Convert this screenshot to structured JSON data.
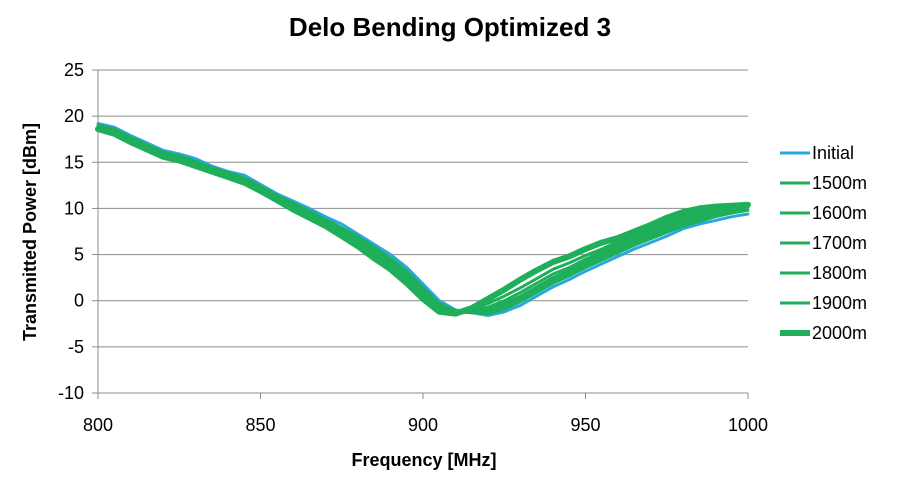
{
  "chart_data": {
    "type": "line",
    "title": "Delo Bending Optimized 3",
    "xlabel": "Frequency [MHz]",
    "ylabel": "Transmitted Power [dBm]",
    "xlim": [
      800,
      1000
    ],
    "ylim": [
      -10,
      25
    ],
    "xticks": [
      800,
      850,
      900,
      950,
      1000
    ],
    "yticks": [
      -10,
      -5,
      0,
      5,
      10,
      15,
      20,
      25
    ],
    "grid": "horizontal",
    "legend_position": "right",
    "x": [
      800,
      805,
      810,
      815,
      820,
      825,
      830,
      835,
      840,
      845,
      850,
      855,
      860,
      865,
      870,
      875,
      880,
      885,
      890,
      895,
      900,
      905,
      910,
      915,
      920,
      925,
      930,
      935,
      940,
      945,
      950,
      955,
      960,
      965,
      970,
      975,
      980,
      985,
      990,
      995,
      1000
    ],
    "series": [
      {
        "name": "Initial",
        "color": "#29a8e0",
        "width": 3,
        "values": [
          19.2,
          18.8,
          17.9,
          17.1,
          16.3,
          15.9,
          15.4,
          14.6,
          14.0,
          13.6,
          12.6,
          11.6,
          10.8,
          10.0,
          9.1,
          8.3,
          7.2,
          6.1,
          5.0,
          3.6,
          1.8,
          0.0,
          -1.0,
          -1.3,
          -1.6,
          -1.2,
          -0.5,
          0.5,
          1.5,
          2.3,
          3.2,
          4.0,
          4.8,
          5.6,
          6.3,
          7.0,
          7.8,
          8.3,
          8.7,
          9.1,
          9.4
        ]
      },
      {
        "name": "1500m",
        "color": "#1fae5a",
        "width": 3,
        "values": [
          19.0,
          18.6,
          17.7,
          16.9,
          16.1,
          15.7,
          15.1,
          14.4,
          13.9,
          13.3,
          12.4,
          11.4,
          10.6,
          9.7,
          8.8,
          7.9,
          6.9,
          5.8,
          4.6,
          3.2,
          1.4,
          -0.3,
          -1.1,
          -1.3,
          -1.4,
          -0.9,
          -0.1,
          0.9,
          1.9,
          2.7,
          3.6,
          4.4,
          5.2,
          6.0,
          6.7,
          7.4,
          8.1,
          8.6,
          9.1,
          9.5,
          9.8
        ]
      },
      {
        "name": "1600m",
        "color": "#1fae5a",
        "width": 3,
        "values": [
          18.9,
          18.5,
          17.6,
          16.8,
          16.0,
          15.6,
          15.0,
          14.3,
          13.8,
          13.2,
          12.3,
          11.3,
          10.4,
          9.5,
          8.7,
          7.7,
          6.8,
          5.6,
          4.4,
          3.0,
          1.2,
          -0.5,
          -1.2,
          -1.3,
          -1.2,
          -0.6,
          0.2,
          1.2,
          2.2,
          3.0,
          3.9,
          4.7,
          5.5,
          6.3,
          7.0,
          7.7,
          8.4,
          8.9,
          9.4,
          9.8,
          10.1
        ]
      },
      {
        "name": "1700m",
        "color": "#1fae5a",
        "width": 3,
        "values": [
          18.8,
          18.4,
          17.5,
          16.7,
          15.9,
          15.5,
          14.9,
          14.2,
          13.7,
          13.1,
          12.2,
          11.2,
          10.3,
          9.4,
          8.5,
          7.6,
          6.6,
          5.4,
          4.2,
          2.8,
          1.0,
          -0.7,
          -1.2,
          -1.2,
          -1.0,
          -0.3,
          0.5,
          1.5,
          2.5,
          3.3,
          4.2,
          5.0,
          5.8,
          6.6,
          7.3,
          8.0,
          8.7,
          9.2,
          9.6,
          10.0,
          10.3
        ]
      },
      {
        "name": "1800m",
        "color": "#1fae5a",
        "width": 3,
        "values": [
          18.8,
          18.3,
          17.4,
          16.6,
          15.8,
          15.4,
          14.8,
          14.1,
          13.6,
          13.0,
          12.1,
          11.1,
          10.2,
          9.3,
          8.4,
          7.4,
          6.4,
          5.2,
          4.0,
          2.6,
          0.8,
          -0.8,
          -1.3,
          -1.1,
          -0.7,
          0.0,
          0.9,
          1.9,
          2.9,
          3.6,
          4.5,
          5.3,
          6.1,
          6.9,
          7.6,
          8.3,
          9.0,
          9.5,
          9.9,
          10.2,
          10.4
        ]
      },
      {
        "name": "1900m",
        "color": "#1fae5a",
        "width": 3,
        "values": [
          18.7,
          18.2,
          17.3,
          16.5,
          15.7,
          15.3,
          14.7,
          14.0,
          13.5,
          12.9,
          12.0,
          11.0,
          10.1,
          9.1,
          8.2,
          7.2,
          6.2,
          5.0,
          3.8,
          2.3,
          0.5,
          -1.0,
          -1.3,
          -1.0,
          -0.3,
          0.5,
          1.4,
          2.4,
          3.4,
          4.1,
          4.9,
          5.6,
          6.4,
          7.2,
          7.9,
          8.6,
          9.3,
          9.7,
          10.1,
          10.3,
          10.4
        ]
      },
      {
        "name": "2000m",
        "color": "#1fae5a",
        "width": 6,
        "values": [
          18.6,
          18.1,
          17.2,
          16.4,
          15.6,
          15.2,
          14.6,
          14.0,
          13.4,
          12.8,
          11.9,
          10.9,
          9.9,
          9.0,
          8.1,
          7.0,
          5.9,
          4.6,
          3.4,
          1.9,
          0.2,
          -1.2,
          -1.4,
          -0.8,
          0.2,
          1.2,
          2.3,
          3.3,
          4.2,
          4.8,
          5.6,
          6.3,
          6.8,
          7.5,
          8.2,
          9.0,
          9.6,
          10.0,
          10.2,
          10.3,
          10.4
        ]
      }
    ]
  }
}
